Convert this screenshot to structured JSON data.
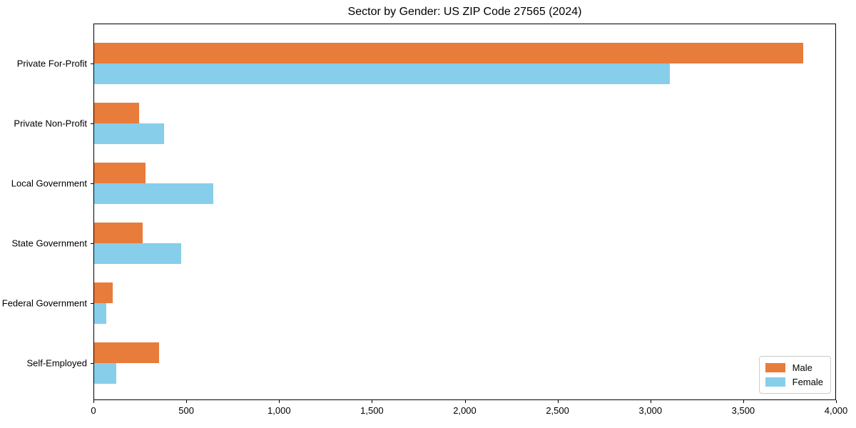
{
  "chart_data": {
    "type": "bar",
    "orientation": "horizontal",
    "title": "Sector by Gender: US ZIP Code 27565 (2024)",
    "categories": [
      "Private For-Profit",
      "Private Non-Profit",
      "Local Government",
      "State Government",
      "Federal Government",
      "Self-Employed"
    ],
    "series": [
      {
        "name": "Male",
        "color": "#E77C3B",
        "values": [
          3820,
          240,
          275,
          260,
          100,
          350
        ]
      },
      {
        "name": "Female",
        "color": "#87CEEB",
        "values": [
          3100,
          375,
          640,
          470,
          65,
          120
        ]
      }
    ],
    "xlim": [
      0,
      4000
    ],
    "xticks": [
      0,
      500,
      1000,
      1500,
      2000,
      2500,
      3000,
      3500,
      4000
    ],
    "xtick_labels": [
      "0",
      "500",
      "1,000",
      "1,500",
      "2,000",
      "2,500",
      "3,000",
      "3,500",
      "4,000"
    ],
    "legend": {
      "position": "lower-right",
      "entries": [
        "Male",
        "Female"
      ]
    },
    "grid": false,
    "colors": {
      "spine": "#000000",
      "background": "#ffffff",
      "legend_border": "#cccccc"
    }
  }
}
